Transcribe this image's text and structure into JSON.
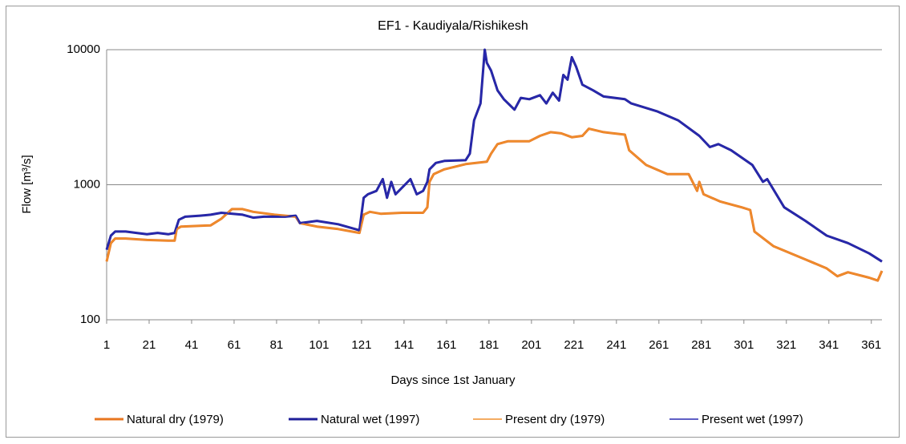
{
  "chart_data": {
    "type": "line",
    "title": "EF1 - Kaudiyala/Rishikesh",
    "x_label": "Days since 1st January",
    "y_label": "Flow [m³/s]",
    "log_y": true,
    "grid": true,
    "legend": "bottom",
    "xlim": [
      1,
      366
    ],
    "xticks": [
      1,
      21,
      41,
      61,
      81,
      101,
      121,
      141,
      161,
      181,
      201,
      221,
      241,
      261,
      281,
      301,
      321,
      341,
      361
    ],
    "ylim": [
      100,
      10000
    ],
    "yticks": [
      100,
      1000,
      10000
    ],
    "series": [
      {
        "name": "Natural dry (1979)",
        "color": "#e8761f",
        "line_width": 3,
        "x": [
          1,
          3,
          5,
          10,
          20,
          30,
          33,
          34,
          36,
          50,
          55,
          60,
          65,
          70,
          80,
          90,
          92,
          100,
          110,
          120,
          122,
          125,
          130,
          140,
          150,
          152,
          153,
          155,
          160,
          170,
          180,
          182,
          185,
          190,
          200,
          205,
          210,
          215,
          220,
          225,
          228,
          235,
          245,
          247,
          255,
          265,
          275,
          279,
          280,
          282,
          290,
          300,
          304,
          306,
          315,
          330,
          340,
          345,
          350,
          360,
          364,
          366
        ],
        "values": [
          270,
          370,
          400,
          400,
          390,
          385,
          385,
          470,
          490,
          500,
          560,
          660,
          660,
          630,
          600,
          580,
          520,
          490,
          470,
          440,
          600,
          630,
          610,
          620,
          620,
          680,
          1050,
          1200,
          1300,
          1420,
          1480,
          1700,
          2000,
          2100,
          2100,
          2300,
          2450,
          2400,
          2250,
          2300,
          2600,
          2450,
          2350,
          1800,
          1400,
          1200,
          1200,
          900,
          1050,
          850,
          750,
          680,
          650,
          450,
          350,
          280,
          240,
          210,
          225,
          205,
          195,
          230
        ]
      },
      {
        "name": "Natural wet (1997)",
        "color": "#1f1f99",
        "line_width": 3,
        "x": [
          1,
          3,
          5,
          10,
          15,
          20,
          25,
          30,
          33,
          35,
          38,
          45,
          50,
          55,
          65,
          70,
          75,
          85,
          90,
          92,
          100,
          110,
          120,
          122,
          124,
          128,
          131,
          133,
          135,
          137,
          140,
          144,
          147,
          150,
          152,
          153,
          156,
          160,
          170,
          172,
          174,
          177,
          179,
          180,
          182,
          185,
          188,
          193,
          196,
          200,
          205,
          208,
          211,
          214,
          216,
          218,
          220,
          222,
          225,
          230,
          235,
          245,
          248,
          260,
          270,
          280,
          285,
          289,
          295,
          305,
          310,
          312,
          320,
          330,
          340,
          350,
          360,
          366
        ],
        "values": [
          330,
          420,
          450,
          450,
          440,
          430,
          440,
          430,
          440,
          550,
          580,
          590,
          600,
          620,
          600,
          570,
          580,
          580,
          590,
          520,
          540,
          510,
          460,
          800,
          850,
          900,
          1100,
          800,
          1050,
          850,
          950,
          1100,
          850,
          900,
          1050,
          1300,
          1450,
          1500,
          1520,
          1700,
          3000,
          4000,
          10000,
          8000,
          7000,
          5000,
          4300,
          3600,
          4400,
          4300,
          4600,
          4000,
          4800,
          4200,
          6500,
          6000,
          8800,
          7500,
          5500,
          5000,
          4500,
          4300,
          4000,
          3500,
          3000,
          2300,
          1900,
          2000,
          1800,
          1400,
          1050,
          1100,
          680,
          540,
          420,
          370,
          310,
          270
        ]
      },
      {
        "name": "Present dry (1979)",
        "color": "#f0902f",
        "line_width": 1.5,
        "x": [
          1,
          3,
          5,
          10,
          20,
          30,
          33,
          34,
          36,
          50,
          55,
          60,
          65,
          70,
          80,
          90,
          92,
          100,
          110,
          120,
          122,
          125,
          130,
          140,
          150,
          152,
          153,
          155,
          160,
          170,
          180,
          182,
          185,
          190,
          200,
          205,
          210,
          215,
          220,
          225,
          228,
          235,
          245,
          247,
          255,
          265,
          275,
          279,
          280,
          282,
          290,
          300,
          304,
          306,
          315,
          330,
          340,
          345,
          350,
          360,
          364,
          366
        ],
        "values": [
          270,
          370,
          400,
          400,
          390,
          385,
          385,
          470,
          490,
          500,
          560,
          660,
          660,
          630,
          600,
          580,
          520,
          490,
          470,
          440,
          600,
          630,
          610,
          620,
          620,
          680,
          1050,
          1200,
          1300,
          1420,
          1480,
          1700,
          2000,
          2100,
          2100,
          2300,
          2450,
          2400,
          2250,
          2300,
          2600,
          2450,
          2350,
          1800,
          1400,
          1200,
          1200,
          900,
          1050,
          850,
          750,
          680,
          650,
          450,
          350,
          280,
          240,
          210,
          225,
          205,
          195,
          230
        ]
      },
      {
        "name": "Present wet (1997)",
        "color": "#2a2ab0",
        "line_width": 1.5,
        "x": [
          1,
          3,
          5,
          10,
          15,
          20,
          25,
          30,
          33,
          35,
          38,
          45,
          50,
          55,
          65,
          70,
          75,
          85,
          90,
          92,
          100,
          110,
          120,
          122,
          124,
          128,
          131,
          133,
          135,
          137,
          140,
          144,
          147,
          150,
          152,
          153,
          156,
          160,
          170,
          172,
          174,
          177,
          179,
          180,
          182,
          185,
          188,
          193,
          196,
          200,
          205,
          208,
          211,
          214,
          216,
          218,
          220,
          222,
          225,
          230,
          235,
          245,
          248,
          260,
          270,
          280,
          285,
          289,
          295,
          305,
          310,
          312,
          320,
          330,
          340,
          350,
          360,
          366
        ],
        "values": [
          330,
          420,
          450,
          450,
          440,
          430,
          440,
          430,
          440,
          550,
          580,
          590,
          600,
          620,
          600,
          570,
          580,
          580,
          590,
          520,
          540,
          510,
          460,
          800,
          850,
          900,
          1100,
          800,
          1050,
          850,
          950,
          1100,
          850,
          900,
          1050,
          1300,
          1450,
          1500,
          1520,
          1700,
          3000,
          4000,
          10000,
          8000,
          7000,
          5000,
          4300,
          3600,
          4400,
          4300,
          4600,
          4000,
          4800,
          4200,
          6500,
          6000,
          8800,
          7500,
          5500,
          5000,
          4500,
          4300,
          4000,
          3500,
          3000,
          2300,
          1900,
          2000,
          1800,
          1400,
          1050,
          1100,
          680,
          540,
          420,
          370,
          310,
          270
        ]
      }
    ]
  }
}
